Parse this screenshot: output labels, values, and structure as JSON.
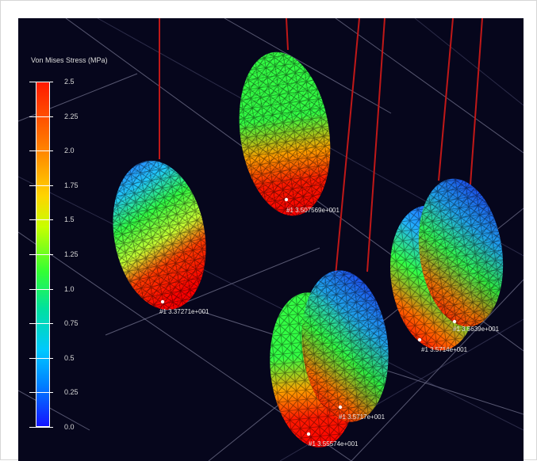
{
  "legend": {
    "title": "Von Mises Stress (MPa)",
    "ticks": [
      "2.5",
      "2.25",
      "2.0",
      "1.75",
      "1.5",
      "1.25",
      "1.0",
      "0.75",
      "0.5",
      "0.25",
      "0.0"
    ],
    "colors": [
      "#ff1a00",
      "#ff7a00",
      "#ffd400",
      "#c8ff00",
      "#33ff33",
      "#00e0a0",
      "#00c8ff",
      "#0080ff",
      "#1414ff"
    ]
  },
  "node_labels": [
    "#1 3.507569e+001",
    "#1 3.37271e+001",
    "#1 3.5639e+001",
    "#1 3.5714e+001",
    "#1 3.5717e+001",
    "#1 3.55574e+001"
  ],
  "scene": {
    "background": "#06061c",
    "mesh_colors": {
      "high": "#ff2a00",
      "mid": "#33ff44",
      "low": "#1a4cff"
    }
  }
}
